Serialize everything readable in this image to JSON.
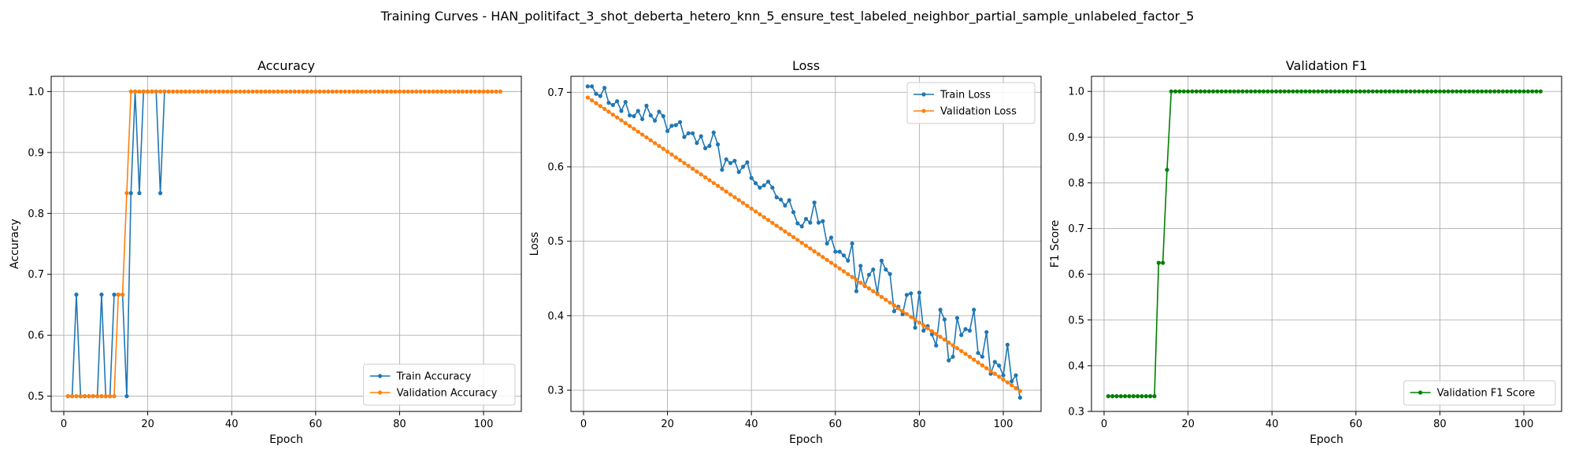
{
  "figure": {
    "suptitle": "Training Curves - HAN_politifact_3_shot_deberta_hetero_knn_5_ensure_test_labeled_neighbor_partial_sample_unlabeled_factor_5"
  },
  "colors": {
    "train": "#1f77b4",
    "validation": "#ff7f0e",
    "f1": "#008000",
    "grid": "#b0b0b0"
  },
  "chart_data": [
    {
      "type": "line",
      "title": "Accuracy",
      "xlabel": "Epoch",
      "ylabel": "Accuracy",
      "xlim": [
        -3,
        109
      ],
      "ylim": [
        0.475,
        1.025
      ],
      "xticks": [
        0,
        20,
        40,
        60,
        80,
        100
      ],
      "yticks": [
        0.5,
        0.6,
        0.7,
        0.8,
        0.9,
        1.0
      ],
      "ytick_labels": [
        "0.5",
        "0.6",
        "0.7",
        "0.8",
        "0.9",
        "1.0"
      ],
      "grid": true,
      "legend": "lower-right",
      "series": [
        {
          "name": "Train Accuracy",
          "color": "#1f77b4",
          "x": [
            1,
            2,
            3,
            4,
            5,
            6,
            7,
            8,
            9,
            10,
            11,
            12,
            13,
            14,
            15,
            16,
            17,
            18,
            19,
            20,
            21,
            22,
            23,
            24
          ],
          "y": [
            0.5,
            0.5,
            0.6667,
            0.5,
            0.5,
            0.5,
            0.5,
            0.5,
            0.6667,
            0.5,
            0.5,
            0.6667,
            0.6667,
            0.6667,
            0.5,
            0.8333,
            1.0,
            0.8333,
            1.0,
            1.0,
            1.0,
            1.0,
            0.8333,
            1.0
          ]
        },
        {
          "name": "Validation Accuracy",
          "color": "#ff7f0e",
          "x_start": 1,
          "x_end": 104,
          "x_values": [
            1,
            2,
            3,
            4,
            5,
            6,
            7,
            8,
            9,
            10,
            11,
            12,
            13,
            14,
            15,
            16
          ],
          "y_values": [
            0.5,
            0.5,
            0.5,
            0.5,
            0.5,
            0.5,
            0.5,
            0.5,
            0.5,
            0.5,
            0.5,
            0.5,
            0.6667,
            0.6667,
            0.8333,
            1.0
          ],
          "rest_value": 1.0
        }
      ]
    },
    {
      "type": "line",
      "title": "Loss",
      "xlabel": "Epoch",
      "ylabel": "Loss",
      "xlim": [
        -3,
        109
      ],
      "ylim": [
        0.2715,
        0.7215
      ],
      "xticks": [
        0,
        20,
        40,
        60,
        80,
        100
      ],
      "yticks": [
        0.3,
        0.4,
        0.5,
        0.6,
        0.7
      ],
      "ytick_labels": [
        "0.3",
        "0.4",
        "0.5",
        "0.6",
        "0.7"
      ],
      "grid": true,
      "legend": "upper-right",
      "series": [
        {
          "name": "Train Loss",
          "color": "#1f77b4",
          "x_start": 1,
          "y": [
            0.708,
            0.708,
            0.698,
            0.695,
            0.706,
            0.686,
            0.683,
            0.688,
            0.675,
            0.687,
            0.669,
            0.668,
            0.675,
            0.664,
            0.682,
            0.669,
            0.662,
            0.674,
            0.668,
            0.648,
            0.655,
            0.656,
            0.66,
            0.64,
            0.645,
            0.645,
            0.632,
            0.641,
            0.625,
            0.628,
            0.646,
            0.63,
            0.596,
            0.61,
            0.605,
            0.608,
            0.593,
            0.6,
            0.606,
            0.585,
            0.578,
            0.572,
            0.575,
            0.58,
            0.572,
            0.559,
            0.556,
            0.548,
            0.555,
            0.539,
            0.524,
            0.52,
            0.53,
            0.525,
            0.552,
            0.525,
            0.527,
            0.497,
            0.505,
            0.486,
            0.486,
            0.481,
            0.474,
            0.497,
            0.433,
            0.467,
            0.44,
            0.455,
            0.462,
            0.43,
            0.474,
            0.462,
            0.456,
            0.406,
            0.412,
            0.402,
            0.428,
            0.43,
            0.384,
            0.431,
            0.38,
            0.386,
            0.375,
            0.36,
            0.408,
            0.395,
            0.34,
            0.345,
            0.397,
            0.374,
            0.382,
            0.38,
            0.408,
            0.35,
            0.345,
            0.378,
            0.322,
            0.338,
            0.333,
            0.32,
            0.361,
            0.312,
            0.32,
            0.29
          ]
        },
        {
          "name": "Validation Loss",
          "color": "#ff7f0e",
          "x_start": 1,
          "y_start": 0.693,
          "y_end": 0.299,
          "x_end": 104
        }
      ]
    },
    {
      "type": "line",
      "title": "Validation F1",
      "xlabel": "Epoch",
      "ylabel": "F1 Score",
      "xlim": [
        -3,
        109
      ],
      "ylim": [
        0.3,
        1.033
      ],
      "xticks": [
        0,
        20,
        40,
        60,
        80,
        100
      ],
      "yticks": [
        0.3,
        0.4,
        0.5,
        0.6,
        0.7,
        0.8,
        0.9,
        1.0
      ],
      "ytick_labels": [
        "0.3",
        "0.4",
        "0.5",
        "0.6",
        "0.7",
        "0.8",
        "0.9",
        "1.0"
      ],
      "grid": true,
      "legend": "lower-right",
      "series": [
        {
          "name": "Validation F1 Score",
          "color": "#008000",
          "x_start": 1,
          "x_end": 104,
          "x_values": [
            1,
            2,
            3,
            4,
            5,
            6,
            7,
            8,
            9,
            10,
            11,
            12,
            13,
            14,
            15,
            16
          ],
          "y_values": [
            0.3333,
            0.3333,
            0.3333,
            0.3333,
            0.3333,
            0.3333,
            0.3333,
            0.3333,
            0.3333,
            0.3333,
            0.3333,
            0.3333,
            0.625,
            0.625,
            0.8286,
            1.0
          ],
          "rest_value": 1.0
        }
      ]
    }
  ]
}
